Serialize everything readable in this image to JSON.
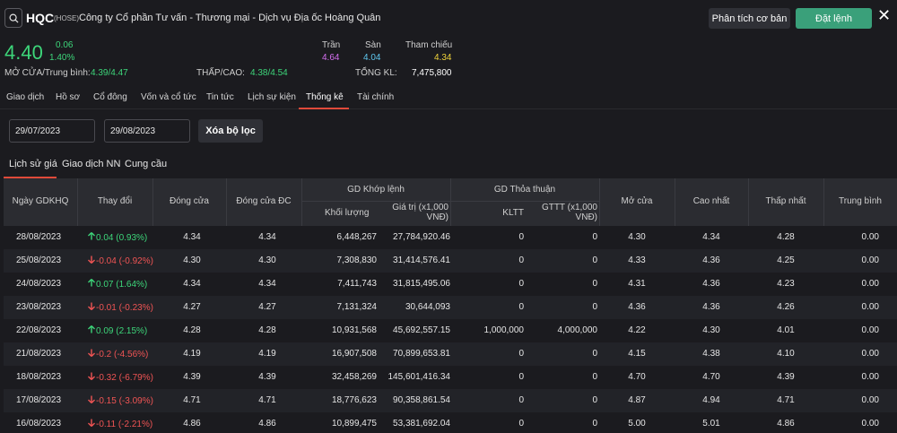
{
  "header": {
    "ticker": "HQC",
    "exchange": "(HOSE)",
    "company": "Công ty Cổ phần Tư vấn - Thương mại - Dịch vụ Địa ốc Hoàng Quân",
    "analysis_label": "Phân tích cơ bản",
    "order_label": "Đặt lệnh",
    "close_glyph": "✕"
  },
  "quote": {
    "price": "4.40",
    "change": "0.06",
    "change_pct": "1.40%",
    "open_avg_label": "MỞ CỬA/Trung bình:",
    "open_avg_value": "4.39/4.47",
    "low_high_label": "THẤP/CAO:",
    "low_high_value": "4.38/4.54",
    "ceiling_label": "Trần",
    "ceiling_value": "4.64",
    "floor_label": "Sàn",
    "floor_value": "4.04",
    "ref_label": "Tham chiếu",
    "ref_value": "4.34",
    "volume_label": "TỔNG KL:",
    "volume_value": "7,475,800"
  },
  "colors": {
    "up": "#3dd67a",
    "down": "#f05454",
    "ceiling": "#d56ff0",
    "floor": "#5fc8f0",
    "ref": "#f0d43a",
    "accent": "#e04a3a",
    "order_button": "#3aa07a"
  },
  "main_tabs": [
    {
      "label": "Giao dịch"
    },
    {
      "label": "Hồ sơ"
    },
    {
      "label": "Cổ đông"
    },
    {
      "label": "Vốn và cổ tức"
    },
    {
      "label": "Tin tức"
    },
    {
      "label": "Lịch sự kiện"
    },
    {
      "label": "Thống kê",
      "active": true
    },
    {
      "label": "Tài chính"
    }
  ],
  "filters": {
    "from_date": "29/07/2023",
    "to_date": "29/08/2023",
    "clear_label": "Xóa bộ lọc"
  },
  "sub_tabs": [
    {
      "label": "Lịch sử giá",
      "active": true
    },
    {
      "label": "Giao dịch NN"
    },
    {
      "label": "Cung cầu"
    }
  ],
  "table": {
    "headers": {
      "date": "Ngày GDKHQ",
      "change": "Thay đổi",
      "close": "Đóng cửa",
      "close_adj": "Đóng cửa ĐC",
      "matched_group": "GD Khớp lệnh",
      "matched_volume": "Khối lượng",
      "matched_value_l1": "Giá trị (x1,000",
      "matched_value_l2": "VNĐ)",
      "deal_group": "GD Thỏa thuận",
      "deal_volume": "KLTT",
      "deal_value_l1": "GTTT (x1,000",
      "deal_value_l2": "VNĐ)",
      "open": "Mở cửa",
      "high": "Cao nhất",
      "low": "Thấp nhất",
      "avg": "Trung bình"
    },
    "rows": [
      {
        "date": "28/08/2023",
        "dir": "up",
        "change": "0.04 (0.93%)",
        "close": "4.34",
        "close_adj": "4.34",
        "vol": "6,448,267",
        "val": "27,784,920.46",
        "kltt": "0",
        "gttt": "0",
        "open": "4.30",
        "high": "4.34",
        "low": "4.28",
        "avg": "0.00"
      },
      {
        "date": "25/08/2023",
        "dir": "down",
        "change": "-0.04 (-0.92%)",
        "close": "4.30",
        "close_adj": "4.30",
        "vol": "7,308,830",
        "val": "31,414,576.41",
        "kltt": "0",
        "gttt": "0",
        "open": "4.33",
        "high": "4.36",
        "low": "4.25",
        "avg": "0.00"
      },
      {
        "date": "24/08/2023",
        "dir": "up",
        "change": "0.07 (1.64%)",
        "close": "4.34",
        "close_adj": "4.34",
        "vol": "7,411,743",
        "val": "31,815,495.06",
        "kltt": "0",
        "gttt": "0",
        "open": "4.31",
        "high": "4.36",
        "low": "4.23",
        "avg": "0.00"
      },
      {
        "date": "23/08/2023",
        "dir": "down",
        "change": "-0.01 (-0.23%)",
        "close": "4.27",
        "close_adj": "4.27",
        "vol": "7,131,324",
        "val": "30,644,093",
        "kltt": "0",
        "gttt": "0",
        "open": "4.36",
        "high": "4.36",
        "low": "4.26",
        "avg": "0.00"
      },
      {
        "date": "22/08/2023",
        "dir": "up",
        "change": "0.09 (2.15%)",
        "close": "4.28",
        "close_adj": "4.28",
        "vol": "10,931,568",
        "val": "45,692,557.15",
        "kltt": "1,000,000",
        "gttt": "4,000,000",
        "open": "4.22",
        "high": "4.30",
        "low": "4.01",
        "avg": "0.00"
      },
      {
        "date": "21/08/2023",
        "dir": "down",
        "change": "-0.2 (-4.56%)",
        "close": "4.19",
        "close_adj": "4.19",
        "vol": "16,907,508",
        "val": "70,899,653.81",
        "kltt": "0",
        "gttt": "0",
        "open": "4.15",
        "high": "4.38",
        "low": "4.10",
        "avg": "0.00"
      },
      {
        "date": "18/08/2023",
        "dir": "down",
        "change": "-0.32 (-6.79%)",
        "close": "4.39",
        "close_adj": "4.39",
        "vol": "32,458,269",
        "val": "145,601,416.34",
        "kltt": "0",
        "gttt": "0",
        "open": "4.70",
        "high": "4.70",
        "low": "4.39",
        "avg": "0.00"
      },
      {
        "date": "17/08/2023",
        "dir": "down",
        "change": "-0.15 (-3.09%)",
        "close": "4.71",
        "close_adj": "4.71",
        "vol": "18,776,623",
        "val": "90,358,861.54",
        "kltt": "0",
        "gttt": "0",
        "open": "4.87",
        "high": "4.94",
        "low": "4.71",
        "avg": "0.00"
      },
      {
        "date": "16/08/2023",
        "dir": "down",
        "change": "-0.11 (-2.21%)",
        "close": "4.86",
        "close_adj": "4.86",
        "vol": "10,899,475",
        "val": "53,381,692.04",
        "kltt": "0",
        "gttt": "0",
        "open": "5.00",
        "high": "5.01",
        "low": "4.86",
        "avg": "0.00"
      }
    ]
  }
}
